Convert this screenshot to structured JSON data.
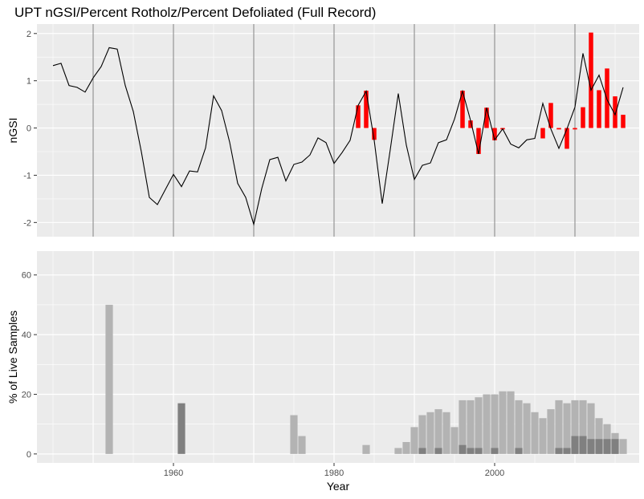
{
  "title": "UPT nGSI/Percent Rotholz/Percent Defoliated (Full Record)",
  "colors": {
    "panel_bg": "#EBEBEB",
    "grid": "#FFFFFF",
    "line": "#000000",
    "red_bar": "#FF0000",
    "light_bar": "#B3B3B3",
    "dark_bar": "#808080",
    "vline": "#7F7F7F"
  },
  "chart_data": [
    {
      "type": "line",
      "name": "top",
      "ylabel": "nGSI",
      "xlim": [
        1943,
        2018
      ],
      "ylim": [
        -2.3,
        2.2
      ],
      "yticks": [
        -2,
        -1,
        0,
        1,
        2
      ],
      "vlines": [
        1950,
        1960,
        1970,
        1980,
        1990,
        2000,
        2010
      ],
      "grid": true,
      "line": {
        "x": [
          1945,
          1946,
          1947,
          1948,
          1949,
          1950,
          1951,
          1952,
          1953,
          1954,
          1955,
          1956,
          1957,
          1958,
          1959,
          1960,
          1961,
          1962,
          1963,
          1964,
          1965,
          1966,
          1967,
          1968,
          1969,
          1970,
          1971,
          1972,
          1973,
          1974,
          1975,
          1976,
          1977,
          1978,
          1979,
          1980,
          1981,
          1982,
          1983,
          1984,
          1985,
          1986,
          1987,
          1988,
          1989,
          1990,
          1991,
          1992,
          1993,
          1994,
          1995,
          1996,
          1997,
          1998,
          1999,
          2000,
          2001,
          2002,
          2003,
          2004,
          2005,
          2006,
          2007,
          2008,
          2009,
          2010,
          2011,
          2012,
          2013,
          2014,
          2015,
          2016
        ],
        "y": [
          1.32,
          1.37,
          0.9,
          0.86,
          0.76,
          1.06,
          1.3,
          1.7,
          1.67,
          0.9,
          0.35,
          -0.5,
          -1.47,
          -1.62,
          -1.3,
          -0.98,
          -1.24,
          -0.91,
          -0.93,
          -0.42,
          0.68,
          0.37,
          -0.3,
          -1.17,
          -1.47,
          -2.04,
          -1.28,
          -0.67,
          -0.62,
          -1.12,
          -0.77,
          -0.72,
          -0.57,
          -0.21,
          -0.31,
          -0.75,
          -0.52,
          -0.26,
          0.48,
          0.78,
          -0.26,
          -1.6,
          -0.46,
          0.73,
          -0.36,
          -1.09,
          -0.79,
          -0.74,
          -0.31,
          -0.25,
          0.19,
          0.78,
          0.16,
          -0.55,
          0.43,
          -0.25,
          -0.02,
          -0.34,
          -0.42,
          -0.25,
          -0.22,
          0.52,
          -0.02,
          -0.43,
          -0.02,
          0.44,
          1.58,
          0.8,
          1.12,
          0.6,
          0.28,
          0.86
        ]
      },
      "bars": {
        "color": "red",
        "x": [
          1983,
          1984,
          1985,
          1996,
          1997,
          1998,
          1999,
          2000,
          2001,
          2006,
          2007,
          2008,
          2009,
          2010,
          2011,
          2012,
          2013,
          2014,
          2015,
          2016
        ],
        "values": [
          0.48,
          0.79,
          -0.25,
          0.79,
          0.16,
          -0.55,
          0.43,
          -0.26,
          -0.03,
          -0.22,
          0.53,
          -0.03,
          -0.44,
          -0.03,
          0.44,
          2.02,
          0.8,
          1.26,
          0.67,
          0.28
        ]
      }
    },
    {
      "type": "bar",
      "name": "bottom",
      "ylabel": "% of Live Samples",
      "xlabel": "Year",
      "xlim": [
        1943,
        2018
      ],
      "ylim": [
        -3,
        68
      ],
      "yticks": [
        0,
        20,
        40,
        60
      ],
      "xticks": [
        1960,
        1980,
        2000
      ],
      "grid": true,
      "series": [
        {
          "color": "light",
          "x": [
            1952,
            1975,
            1976,
            1984,
            1988,
            1989,
            1990,
            1991,
            1992,
            1993,
            1994,
            1995,
            1996,
            1997,
            1998,
            1999,
            2000,
            2001,
            2002,
            2003,
            2004,
            2005,
            2006,
            2007,
            2008,
            2009,
            2010,
            2011,
            2012,
            2013,
            2014,
            2015,
            2016
          ],
          "values": [
            50,
            13,
            6,
            3,
            2,
            4,
            9,
            13,
            14,
            15,
            14,
            9,
            18,
            18,
            19,
            20,
            20,
            21,
            21,
            18,
            17,
            14,
            12,
            15,
            18,
            17,
            18,
            18,
            17,
            12,
            10,
            7,
            5
          ]
        },
        {
          "color": "dark",
          "x": [
            1961,
            1991,
            1993,
            1996,
            1997,
            1998,
            2000,
            2003,
            2008,
            2009,
            2010,
            2011,
            2012,
            2013,
            2014,
            2015
          ],
          "values": [
            17,
            2,
            2,
            3,
            2,
            2,
            2,
            2,
            2,
            2,
            6,
            6,
            5,
            5,
            5,
            5
          ]
        }
      ]
    }
  ]
}
